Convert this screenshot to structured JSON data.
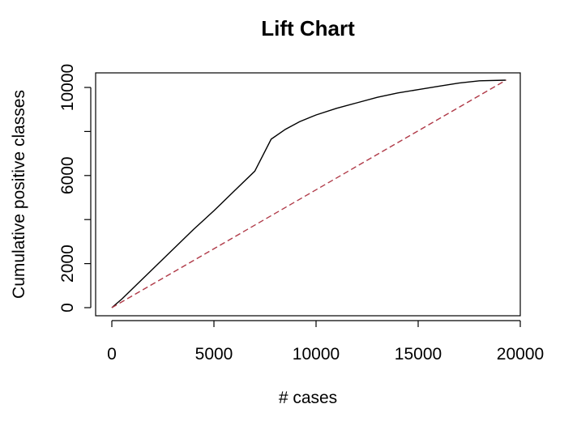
{
  "chart_data": {
    "type": "line",
    "title": "Lift Chart",
    "xlabel": "# cases",
    "ylabel": "Cumulative positive classes",
    "xlim": [
      0,
      20000
    ],
    "ylim": [
      0,
      10500
    ],
    "xticks": [
      0,
      5000,
      10000,
      15000,
      20000
    ],
    "xtick_labels": [
      "0",
      "5000",
      "10000",
      "15000",
      "20000"
    ],
    "yticks": [
      0,
      2000,
      6000,
      10000
    ],
    "yticks_unlabeled": [
      4000,
      8000
    ],
    "ytick_labels": [
      "0",
      "2000",
      "6000",
      "10000"
    ],
    "grid": false,
    "legend": "none",
    "series": [
      {
        "color": "#000000",
        "style": "solid",
        "x": [
          0,
          500,
          1000,
          2000,
          3000,
          4000,
          5000,
          6000,
          7000,
          7800,
          8500,
          9200,
          10000,
          11000,
          12000,
          13000,
          14000,
          15000,
          16000,
          17000,
          18000,
          19300
        ],
        "y": [
          0,
          400,
          850,
          1750,
          2650,
          3550,
          4400,
          5300,
          6200,
          7650,
          8100,
          8450,
          8750,
          9050,
          9300,
          9550,
          9750,
          9900,
          10050,
          10200,
          10300,
          10330
        ]
      },
      {
        "color": "#b03a48",
        "style": "dashed",
        "x": [
          0,
          19300
        ],
        "y": [
          0,
          10330
        ]
      }
    ]
  }
}
